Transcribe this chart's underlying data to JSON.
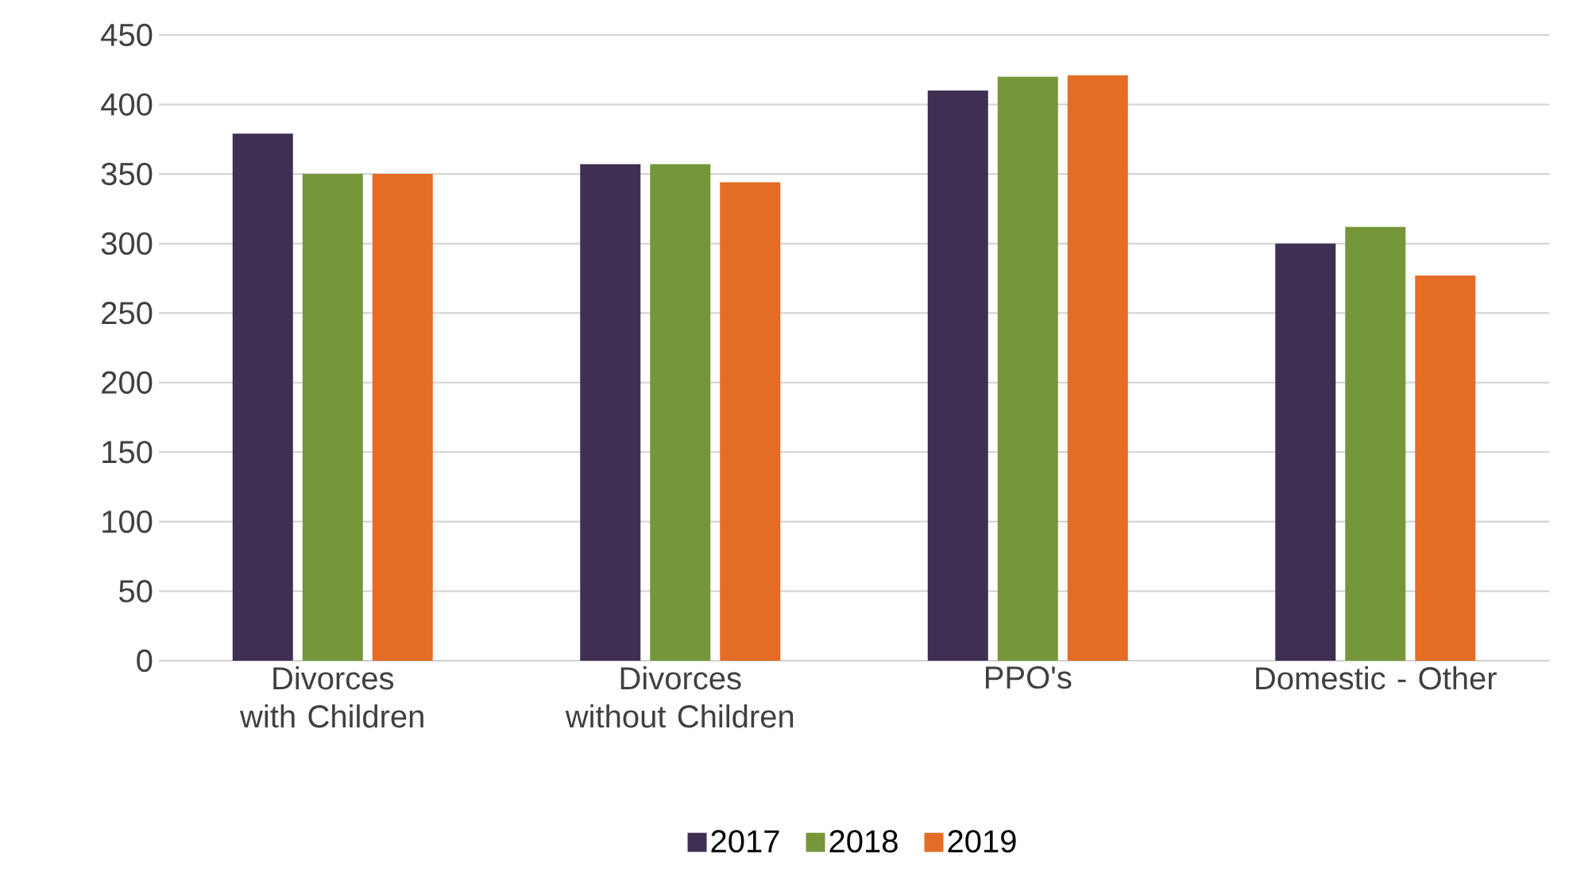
{
  "chart_data": {
    "type": "bar",
    "categories": [
      "Divorces with Children",
      "Divorces without Children",
      "PPO's",
      "Domestic - Other"
    ],
    "series": [
      {
        "name": "2017",
        "color": "#3f2f53",
        "values": [
          379,
          357,
          410,
          300
        ]
      },
      {
        "name": "2018",
        "color": "#76963a",
        "values": [
          350,
          357,
          420,
          312
        ]
      },
      {
        "name": "2019",
        "color": "#e46c25",
        "values": [
          350,
          344,
          421,
          277
        ]
      }
    ],
    "ylim": [
      0,
      450
    ],
    "yticks": [
      0,
      50,
      100,
      150,
      200,
      250,
      300,
      350,
      400,
      450
    ],
    "grid": "y",
    "legend": "bottom"
  }
}
